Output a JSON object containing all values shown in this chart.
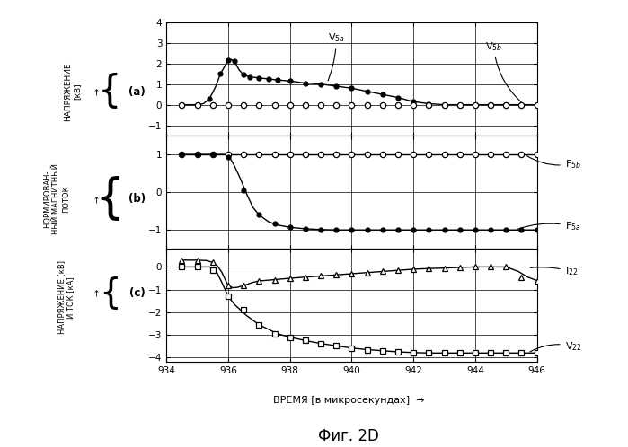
{
  "title": "Фиг. 2D",
  "xlabel": "ВРЕМЯ [в микросекундах]",
  "xmin": 934,
  "xmax": 946,
  "xticks": [
    934,
    936,
    938,
    940,
    942,
    944,
    946
  ],
  "panel_a_ylim": [
    -1.5,
    4.0
  ],
  "panel_a_yticks": [
    -1,
    0,
    1,
    2,
    3,
    4
  ],
  "panel_b_ylim": [
    -1.5,
    1.5
  ],
  "panel_b_yticks": [
    -1,
    0,
    1
  ],
  "panel_c_ylim": [
    -4.2,
    0.8
  ],
  "panel_c_yticks": [
    -4,
    -3,
    -2,
    -1,
    0
  ],
  "V5a_x": [
    934.5,
    935.0,
    935.2,
    935.4,
    935.6,
    935.75,
    935.9,
    936.0,
    936.1,
    936.2,
    936.35,
    936.5,
    936.7,
    937.0,
    937.3,
    937.6,
    938.0,
    938.5,
    939.0,
    939.5,
    940.0,
    940.5,
    941.0,
    941.5,
    942.0,
    942.5,
    943.0,
    943.5,
    944.0,
    944.5,
    945.0,
    945.5,
    946.0
  ],
  "V5a_y": [
    0.0,
    0.0,
    0.05,
    0.3,
    0.9,
    1.5,
    1.9,
    2.15,
    2.2,
    2.1,
    1.7,
    1.45,
    1.35,
    1.3,
    1.25,
    1.2,
    1.15,
    1.05,
    1.0,
    0.9,
    0.8,
    0.65,
    0.5,
    0.35,
    0.15,
    0.05,
    0.0,
    0.0,
    0.0,
    0.0,
    0.0,
    0.0,
    0.0
  ],
  "V5a_mk_x": [
    934.5,
    935.0,
    935.4,
    935.75,
    936.0,
    936.2,
    936.5,
    936.7,
    937.0,
    937.3,
    937.6,
    938.0,
    938.5,
    939.0,
    939.5,
    940.0,
    940.5,
    941.0,
    941.5,
    942.0,
    942.5,
    943.0,
    943.5,
    944.0,
    944.5,
    945.0,
    945.5,
    946.0
  ],
  "V5a_mk_y": [
    0.0,
    0.0,
    0.3,
    1.5,
    2.15,
    2.1,
    1.45,
    1.35,
    1.3,
    1.25,
    1.2,
    1.15,
    1.05,
    1.0,
    0.9,
    0.8,
    0.65,
    0.5,
    0.35,
    0.15,
    0.05,
    0.0,
    0.0,
    0.0,
    0.0,
    0.0,
    0.0,
    0.0
  ],
  "V5b_mk_x": [
    934.5,
    935.0,
    935.5,
    936.0,
    936.5,
    937.0,
    937.5,
    938.0,
    938.5,
    939.0,
    939.5,
    940.0,
    940.5,
    941.0,
    941.5,
    942.0,
    942.5,
    943.0,
    943.5,
    944.0,
    944.5,
    945.0,
    945.5,
    946.0
  ],
  "V5b_mk_y": [
    0.0,
    0.0,
    0.0,
    0.0,
    0.0,
    0.0,
    0.0,
    0.0,
    0.0,
    0.0,
    0.0,
    0.0,
    0.0,
    0.0,
    0.0,
    0.0,
    0.0,
    0.0,
    0.0,
    0.0,
    0.0,
    0.0,
    0.0,
    0.0
  ],
  "F5b_x": [
    934.5,
    935.0,
    935.5,
    936.0,
    936.5,
    937.0,
    937.5,
    938.0,
    938.5,
    939.0,
    939.5,
    940.0,
    940.5,
    941.0,
    941.5,
    942.0,
    942.5,
    943.0,
    943.5,
    944.0,
    944.5,
    945.0,
    945.3,
    945.6,
    945.85,
    946.0
  ],
  "F5b_y": [
    1.0,
    1.0,
    1.0,
    1.0,
    1.0,
    1.0,
    1.0,
    1.0,
    1.0,
    1.0,
    1.0,
    1.0,
    1.0,
    1.0,
    1.0,
    1.0,
    1.0,
    1.0,
    1.0,
    1.0,
    1.0,
    1.0,
    1.0,
    1.0,
    1.0,
    1.0
  ],
  "F5b_mk_x": [
    934.5,
    935.0,
    935.5,
    936.0,
    936.5,
    937.0,
    937.5,
    938.0,
    938.5,
    939.0,
    939.5,
    940.0,
    940.5,
    941.0,
    941.5,
    942.0,
    942.5,
    943.0,
    943.5,
    944.0,
    944.5,
    945.0,
    945.5,
    946.0
  ],
  "F5b_mk_y": [
    1.0,
    1.0,
    1.0,
    1.0,
    1.0,
    1.0,
    1.0,
    1.0,
    1.0,
    1.0,
    1.0,
    1.0,
    1.0,
    1.0,
    1.0,
    1.0,
    1.0,
    1.0,
    1.0,
    1.0,
    1.0,
    1.0,
    1.0,
    1.0
  ],
  "F5a_x": [
    934.5,
    935.0,
    935.5,
    935.9,
    936.05,
    936.2,
    936.4,
    936.6,
    936.8,
    937.0,
    937.3,
    937.6,
    938.0,
    938.5,
    939.0,
    939.5,
    940.0,
    940.5,
    941.0,
    941.5,
    942.0,
    942.5,
    943.0,
    943.5,
    944.0,
    944.5,
    945.0,
    945.4,
    945.7,
    946.0
  ],
  "F5a_y": [
    1.0,
    1.0,
    1.0,
    1.0,
    0.92,
    0.7,
    0.35,
    -0.05,
    -0.4,
    -0.6,
    -0.78,
    -0.87,
    -0.93,
    -0.97,
    -0.99,
    -1.0,
    -1.0,
    -1.0,
    -1.0,
    -1.0,
    -1.0,
    -1.0,
    -1.0,
    -1.0,
    -1.0,
    -1.0,
    -1.0,
    -1.0,
    -1.0,
    -1.0
  ],
  "F5a_mk_x": [
    934.5,
    935.0,
    935.5,
    936.0,
    936.5,
    937.0,
    937.5,
    938.0,
    938.5,
    939.0,
    939.5,
    940.0,
    940.5,
    941.0,
    941.5,
    942.0,
    942.5,
    943.0,
    943.5,
    944.0,
    944.5,
    945.0,
    945.5,
    946.0
  ],
  "F5a_mk_y": [
    1.0,
    1.0,
    1.0,
    0.92,
    0.05,
    -0.6,
    -0.83,
    -0.93,
    -0.97,
    -0.99,
    -1.0,
    -1.0,
    -1.0,
    -1.0,
    -1.0,
    -1.0,
    -1.0,
    -1.0,
    -1.0,
    -1.0,
    -1.0,
    -1.0,
    -1.0,
    -1.0
  ],
  "I22_x": [
    934.5,
    935.0,
    935.3,
    935.5,
    935.65,
    935.8,
    935.9,
    936.0,
    936.15,
    936.3,
    936.5,
    936.8,
    937.0,
    937.5,
    938.0,
    938.5,
    939.0,
    939.5,
    940.0,
    940.5,
    941.0,
    941.5,
    942.0,
    942.5,
    943.0,
    943.5,
    944.0,
    944.5,
    945.0,
    945.4,
    945.7,
    946.0
  ],
  "I22_y": [
    0.3,
    0.3,
    0.28,
    0.2,
    0.05,
    -0.25,
    -0.55,
    -0.82,
    -0.92,
    -0.9,
    -0.82,
    -0.68,
    -0.62,
    -0.56,
    -0.5,
    -0.45,
    -0.4,
    -0.35,
    -0.3,
    -0.25,
    -0.2,
    -0.15,
    -0.1,
    -0.07,
    -0.05,
    -0.02,
    0.0,
    0.0,
    0.0,
    -0.2,
    -0.45,
    -0.6
  ],
  "I22_mk_x": [
    934.5,
    935.0,
    935.5,
    936.0,
    936.5,
    937.0,
    937.5,
    938.0,
    938.5,
    939.0,
    939.5,
    940.0,
    940.5,
    941.0,
    941.5,
    942.0,
    942.5,
    943.0,
    943.5,
    944.0,
    944.5,
    945.0,
    945.5,
    946.0
  ],
  "I22_mk_y": [
    0.3,
    0.3,
    0.2,
    -0.82,
    -0.82,
    -0.62,
    -0.56,
    -0.5,
    -0.45,
    -0.4,
    -0.35,
    -0.3,
    -0.25,
    -0.2,
    -0.15,
    -0.1,
    -0.07,
    -0.05,
    -0.02,
    0.0,
    0.0,
    0.0,
    -0.45,
    -0.6
  ],
  "V22_x": [
    934.5,
    935.0,
    935.4,
    935.6,
    935.8,
    936.0,
    936.2,
    936.4,
    936.6,
    936.8,
    937.0,
    937.3,
    937.6,
    938.0,
    938.5,
    939.0,
    939.5,
    940.0,
    940.5,
    941.0,
    941.5,
    942.0,
    942.5,
    943.0,
    943.5,
    944.0,
    944.5,
    945.0,
    945.5,
    946.0
  ],
  "V22_y": [
    0.0,
    0.0,
    0.0,
    -0.15,
    -0.7,
    -1.3,
    -1.65,
    -1.9,
    -2.15,
    -2.35,
    -2.55,
    -2.75,
    -2.95,
    -3.1,
    -3.25,
    -3.38,
    -3.48,
    -3.58,
    -3.65,
    -3.7,
    -3.75,
    -3.78,
    -3.8,
    -3.8,
    -3.8,
    -3.8,
    -3.8,
    -3.8,
    -3.8,
    -3.8
  ],
  "V22_mk_x": [
    934.5,
    935.0,
    935.5,
    936.0,
    936.5,
    937.0,
    937.5,
    938.0,
    938.5,
    939.0,
    939.5,
    940.0,
    940.5,
    941.0,
    941.5,
    942.0,
    942.5,
    943.0,
    943.5,
    944.0,
    944.5,
    945.0,
    945.5,
    946.0
  ],
  "V22_mk_y": [
    0.0,
    0.0,
    -0.15,
    -1.3,
    -1.9,
    -2.55,
    -2.95,
    -3.1,
    -3.25,
    -3.38,
    -3.48,
    -3.58,
    -3.65,
    -3.7,
    -3.75,
    -3.78,
    -3.8,
    -3.8,
    -3.8,
    -3.8,
    -3.8,
    -3.8,
    -3.8,
    -3.8
  ]
}
